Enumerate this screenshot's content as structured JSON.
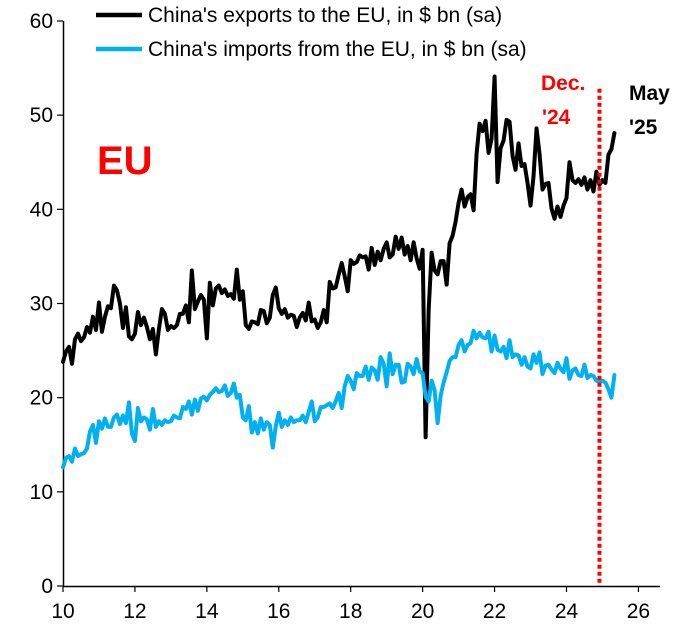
{
  "chart_data": {
    "type": "line",
    "region_label": "EU",
    "xlim": [
      10,
      26.6
    ],
    "ylim": [
      0,
      60
    ],
    "x_ticks": [
      "10",
      "12",
      "14",
      "16",
      "18",
      "20",
      "22",
      "24",
      "26"
    ],
    "y_ticks": [
      "0",
      "10",
      "20",
      "30",
      "40",
      "50",
      "60"
    ],
    "grid": false,
    "legend_position": "top",
    "colors": {
      "exports": "#000000",
      "imports": "#00B0F0",
      "marker": "#FF0000",
      "region_label": "#FF0000"
    },
    "annotations": {
      "marker_label_line1": "Dec.",
      "marker_label_line2": "'24",
      "marker_x": 24.917,
      "latest_label_line1": "May",
      "latest_label_line2": "'25"
    },
    "x": [
      10.0,
      10.083,
      10.167,
      10.25,
      10.333,
      10.417,
      10.5,
      10.583,
      10.667,
      10.75,
      10.833,
      10.917,
      11.0,
      11.083,
      11.167,
      11.25,
      11.333,
      11.417,
      11.5,
      11.583,
      11.667,
      11.75,
      11.833,
      11.917,
      12.0,
      12.083,
      12.167,
      12.25,
      12.333,
      12.417,
      12.5,
      12.583,
      12.667,
      12.75,
      12.833,
      12.917,
      13.0,
      13.083,
      13.167,
      13.25,
      13.333,
      13.417,
      13.5,
      13.583,
      13.667,
      13.75,
      13.833,
      13.917,
      14.0,
      14.083,
      14.167,
      14.25,
      14.333,
      14.417,
      14.5,
      14.583,
      14.667,
      14.75,
      14.833,
      14.917,
      15.0,
      15.083,
      15.167,
      15.25,
      15.333,
      15.417,
      15.5,
      15.583,
      15.667,
      15.75,
      15.833,
      15.917,
      16.0,
      16.083,
      16.167,
      16.25,
      16.333,
      16.417,
      16.5,
      16.583,
      16.667,
      16.75,
      16.833,
      16.917,
      17.0,
      17.083,
      17.167,
      17.25,
      17.333,
      17.417,
      17.5,
      17.583,
      17.667,
      17.75,
      17.833,
      17.917,
      18.0,
      18.083,
      18.167,
      18.25,
      18.333,
      18.417,
      18.5,
      18.583,
      18.667,
      18.75,
      18.833,
      18.917,
      19.0,
      19.083,
      19.167,
      19.25,
      19.333,
      19.417,
      19.5,
      19.583,
      19.667,
      19.75,
      19.833,
      19.917,
      20.0,
      20.083,
      20.167,
      20.25,
      20.333,
      20.417,
      20.5,
      20.583,
      20.667,
      20.75,
      20.833,
      20.917,
      21.0,
      21.083,
      21.167,
      21.25,
      21.333,
      21.417,
      21.5,
      21.583,
      21.667,
      21.75,
      21.833,
      21.917,
      22.0,
      22.083,
      22.167,
      22.25,
      22.333,
      22.417,
      22.5,
      22.583,
      22.667,
      22.75,
      22.833,
      22.917,
      23.0,
      23.083,
      23.167,
      23.25,
      23.333,
      23.417,
      23.5,
      23.583,
      23.667,
      23.75,
      23.833,
      23.917,
      24.0,
      24.083,
      24.167,
      24.25,
      24.333,
      24.417,
      24.5,
      24.583,
      24.667,
      24.75,
      24.833,
      24.917,
      25.0,
      25.083,
      25.167,
      25.25,
      25.333
    ],
    "series": [
      {
        "name": "China's exports to the EU, in $ bn (sa)",
        "values": [
          23.8,
          24.9,
          25.4,
          23.6,
          26.2,
          26.8,
          26.0,
          26.4,
          27.5,
          26.9,
          28.6,
          27.2,
          30.1,
          27.0,
          28.6,
          29.7,
          29.5,
          31.9,
          31.4,
          30.0,
          27.4,
          29.6,
          26.5,
          26.2,
          26.8,
          29.1,
          27.7,
          28.5,
          27.5,
          26.2,
          27.3,
          24.6,
          27.3,
          29.4,
          28.9,
          27.2,
          27.6,
          27.4,
          27.7,
          28.9,
          28.9,
          29.8,
          28.0,
          33.5,
          29.4,
          30.2,
          30.9,
          30.4,
          26.3,
          32.2,
          29.8,
          31.6,
          31.9,
          31.1,
          31.5,
          30.8,
          31.0,
          30.5,
          33.6,
          30.4,
          31.3,
          27.7,
          27.3,
          28.1,
          28.0,
          27.8,
          29.3,
          29.2,
          27.9,
          28.5,
          30.9,
          31.7,
          29.5,
          28.9,
          29.4,
          28.5,
          28.8,
          28.7,
          27.5,
          28.5,
          29.0,
          28.2,
          30.1,
          28.1,
          28.3,
          27.4,
          28.0,
          29.3,
          28.0,
          32.3,
          31.6,
          31.7,
          33.1,
          34.3,
          32.9,
          31.3,
          34.6,
          34.2,
          34.4,
          35.1,
          34.9,
          35.0,
          33.6,
          35.9,
          34.1,
          35.5,
          34.6,
          35.8,
          36.5,
          34.9,
          35.2,
          37.1,
          35.8,
          37.0,
          35.2,
          36.1,
          34.6,
          36.5,
          34.8,
          33.7,
          35.7,
          15.8,
          29.3,
          35.4,
          33.5,
          33.1,
          34.5,
          34.5,
          32.0,
          36.4,
          37.2,
          38.7,
          40.7,
          42.1,
          40.3,
          41.3,
          41.6,
          39.9,
          45.9,
          49.1,
          48.3,
          49.4,
          46.0,
          47.5,
          54.1,
          42.9,
          46.5,
          47.3,
          49.5,
          49.3,
          45.7,
          44.2,
          47.0,
          44.6,
          44.8,
          42.8,
          40.4,
          43.5,
          48.6,
          45.9,
          42.1,
          42.7,
          42.8,
          40.1,
          39.0,
          40.3,
          39.2,
          40.4,
          41.2,
          45.0,
          43.1,
          42.8,
          43.2,
          42.6,
          43.4,
          42.1,
          43.1,
          41.9,
          44.0,
          42.6,
          43.1,
          42.8,
          45.8,
          46.4,
          48.1
        ]
      },
      {
        "name": "China's imports from the EU, in $ bn (sa)",
        "values": [
          12.6,
          13.6,
          13.8,
          13.2,
          14.6,
          13.8,
          14.0,
          14.1,
          14.6,
          16.4,
          17.1,
          15.2,
          17.5,
          16.7,
          17.8,
          16.9,
          16.9,
          17.9,
          18.2,
          17.2,
          18.1,
          17.3,
          19.5,
          16.2,
          15.4,
          18.9,
          17.5,
          17.9,
          17.7,
          16.6,
          18.8,
          16.9,
          17.5,
          17.1,
          17.6,
          17.4,
          17.5,
          18.1,
          17.9,
          17.8,
          19.0,
          18.8,
          19.6,
          18.2,
          19.8,
          18.6,
          19.9,
          20.1,
          19.7,
          20.3,
          20.6,
          21.0,
          20.6,
          20.7,
          21.3,
          20.2,
          20.5,
          21.5,
          20.0,
          20.3,
          17.9,
          17.6,
          19.1,
          16.3,
          17.4,
          16.2,
          17.8,
          16.6,
          17.4,
          17.1,
          14.7,
          17.0,
          18.4,
          16.9,
          17.6,
          17.1,
          17.9,
          17.4,
          17.6,
          17.6,
          18.1,
          17.4,
          18.5,
          19.6,
          17.5,
          17.9,
          19.0,
          19.0,
          19.2,
          19.4,
          18.9,
          19.6,
          20.5,
          18.9,
          21.2,
          22.3,
          21.8,
          20.9,
          22.6,
          22.3,
          22.3,
          23.3,
          21.9,
          23.2,
          22.9,
          21.9,
          24.3,
          23.6,
          21.2,
          24.7,
          22.5,
          23.5,
          23.5,
          21.6,
          21.7,
          23.6,
          23.3,
          22.5,
          24.1,
          22.8,
          22.6,
          20.1,
          19.6,
          21.8,
          20.8,
          17.3,
          20.2,
          21.6,
          22.7,
          23.9,
          24.3,
          24.3,
          25.6,
          26.1,
          24.9,
          25.6,
          25.8,
          27.1,
          26.3,
          26.9,
          26.4,
          26.3,
          27.0,
          24.9,
          26.6,
          25.1,
          24.9,
          25.4,
          24.2,
          26.1,
          24.3,
          24.6,
          24.5,
          23.5,
          24.3,
          23.3,
          23.1,
          24.6,
          23.7,
          24.8,
          22.5,
          23.4,
          23.5,
          23.0,
          22.6,
          23.7,
          23.1,
          22.7,
          24.2,
          22.0,
          22.9,
          23.1,
          22.4,
          22.3,
          23.5,
          22.1,
          22.4,
          22.3,
          21.8,
          21.7,
          21.8,
          21.6,
          20.9,
          20.0,
          22.4
        ]
      }
    ]
  }
}
